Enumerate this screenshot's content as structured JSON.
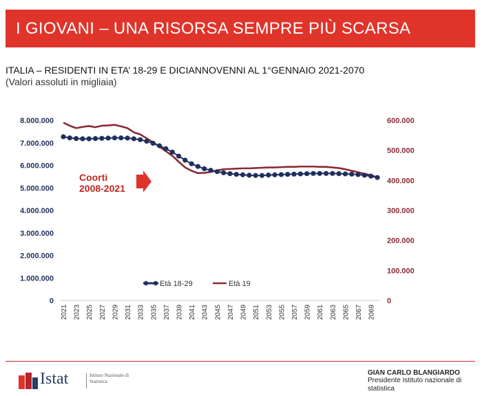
{
  "banner": {
    "title": "I GIOVANI – UNA RISORSA SEMPRE PIÙ SCARSA"
  },
  "chart_data": {
    "type": "line",
    "title": "ITALIA – RESIDENTI IN ETA’ 18-29 E DICIANNOVENNI AL 1°GENNAIO 2021-2070",
    "subtitle": "(Valori assoluti in migliaia)",
    "x": [
      2021,
      2022,
      2023,
      2024,
      2025,
      2026,
      2027,
      2028,
      2029,
      2030,
      2031,
      2032,
      2033,
      2034,
      2035,
      2036,
      2037,
      2038,
      2039,
      2040,
      2041,
      2042,
      2043,
      2044,
      2045,
      2046,
      2047,
      2048,
      2049,
      2050,
      2051,
      2052,
      2053,
      2054,
      2055,
      2056,
      2057,
      2058,
      2059,
      2060,
      2061,
      2062,
      2063,
      2064,
      2065,
      2066,
      2067,
      2068,
      2069,
      2070
    ],
    "x_tick_labels": [
      "2021",
      "2023",
      "2025",
      "2027",
      "2029",
      "2031",
      "2033",
      "2035",
      "2037",
      "2039",
      "2041",
      "2043",
      "2045",
      "2047",
      "2049",
      "2051",
      "2053",
      "2055",
      "2057",
      "2059",
      "2061",
      "2063",
      "2065",
      "2067",
      "2069"
    ],
    "series": [
      {
        "name": "Età 18-29",
        "axis": "left",
        "color": "#1f2f5e",
        "marker": "dot",
        "values": [
          7270000,
          7220000,
          7190000,
          7180000,
          7180000,
          7190000,
          7200000,
          7210000,
          7220000,
          7220000,
          7210000,
          7180000,
          7140000,
          7070000,
          6980000,
          6870000,
          6740000,
          6590000,
          6410000,
          6230000,
          6070000,
          5950000,
          5850000,
          5780000,
          5720000,
          5670000,
          5630000,
          5600000,
          5580000,
          5560000,
          5550000,
          5550000,
          5570000,
          5580000,
          5590000,
          5600000,
          5610000,
          5620000,
          5630000,
          5640000,
          5640000,
          5640000,
          5640000,
          5630000,
          5620000,
          5610000,
          5590000,
          5560000,
          5520000,
          5460000
        ]
      },
      {
        "name": "Età 19",
        "axis": "right",
        "color": "#8b2a35",
        "marker": "none",
        "values": [
          592000,
          582000,
          574000,
          578000,
          581000,
          577000,
          582000,
          583000,
          585000,
          580000,
          574000,
          560000,
          553000,
          540000,
          527000,
          512000,
          497000,
          482000,
          462000,
          443000,
          432000,
          424000,
          425000,
          428000,
          433000,
          437000,
          438000,
          439000,
          440000,
          440000,
          441000,
          442000,
          443000,
          443000,
          444000,
          445000,
          445000,
          446000,
          446000,
          446000,
          445000,
          445000,
          443000,
          441000,
          437000,
          432000,
          427000,
          422000,
          417000,
          410000
        ]
      }
    ],
    "y_left": {
      "min": 0,
      "max": 8000000,
      "ticks": [
        "0",
        "1.000.000",
        "2.000.000",
        "3.000.000",
        "4.000.000",
        "5.000.000",
        "6.000.000",
        "7.000.000",
        "8.000.000"
      ]
    },
    "y_right": {
      "min": 0,
      "max": 600000,
      "ticks": [
        "0",
        "100.000",
        "200.000",
        "300.000",
        "400.000",
        "500.000",
        "600.000"
      ]
    },
    "legend": {
      "position": "bottom-center",
      "items": [
        "Età 18-29",
        "Età 19"
      ]
    },
    "annotation": {
      "line1": "Coorti",
      "line2": "2008-2021",
      "color": "#c0271f"
    },
    "grid": false
  },
  "footer": {
    "logo_word": "Istat",
    "logo_sub": "Istituto Nazionale di Statistica",
    "author": "GIAN CARLO BLANGIARDO",
    "author_role": "Presidente Istituto nazionale di statistica",
    "accent": "#d22a2a"
  }
}
